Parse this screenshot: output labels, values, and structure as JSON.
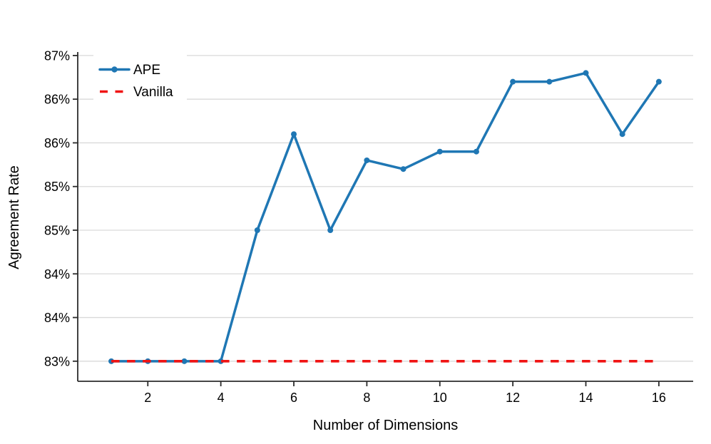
{
  "chart_data": {
    "type": "line",
    "title": "",
    "xlabel": "Number of Dimensions",
    "ylabel": "Agreement Rate",
    "x": [
      1,
      2,
      3,
      4,
      5,
      6,
      7,
      8,
      9,
      10,
      11,
      12,
      13,
      14,
      15,
      16
    ],
    "series": [
      {
        "name": "APE",
        "color": "#1f77b4",
        "line_style": "solid",
        "marker": "circle",
        "values": [
          83.0,
          83.0,
          83.0,
          83.0,
          84.5,
          85.6,
          84.5,
          85.3,
          85.2,
          85.4,
          85.4,
          86.2,
          86.2,
          86.3,
          85.6,
          86.2
        ]
      },
      {
        "name": "Vanilla",
        "color": "#f01414",
        "line_style": "dashed",
        "marker": "none",
        "values": [
          83.0,
          83.0,
          83.0,
          83.0,
          83.0,
          83.0,
          83.0,
          83.0,
          83.0,
          83.0,
          83.0,
          83.0,
          83.0,
          83.0,
          83.0,
          83.0
        ]
      }
    ],
    "xticks": [
      2,
      4,
      6,
      8,
      10,
      12,
      14,
      16
    ],
    "xtick_labels": [
      "2",
      "4",
      "6",
      "8",
      "10",
      "12",
      "14",
      "16"
    ],
    "yticks": [
      83.0,
      83.5,
      84.0,
      84.5,
      85.0,
      85.5,
      86.0,
      86.5
    ],
    "ytick_labels": [
      "83%",
      "84%",
      "84%",
      "85%",
      "85%",
      "86%",
      "86%",
      "87%"
    ],
    "xlim": [
      0.08,
      16.94
    ],
    "ylim": [
      82.77,
      86.54
    ],
    "grid": "horizontal-only",
    "legend_position": "upper-left",
    "colors": {
      "grid": "#d9d9d9",
      "axis": "#2b2b2b",
      "tick_text": "#000000",
      "background": "#ffffff",
      "legend_background": "#ffffff"
    }
  }
}
